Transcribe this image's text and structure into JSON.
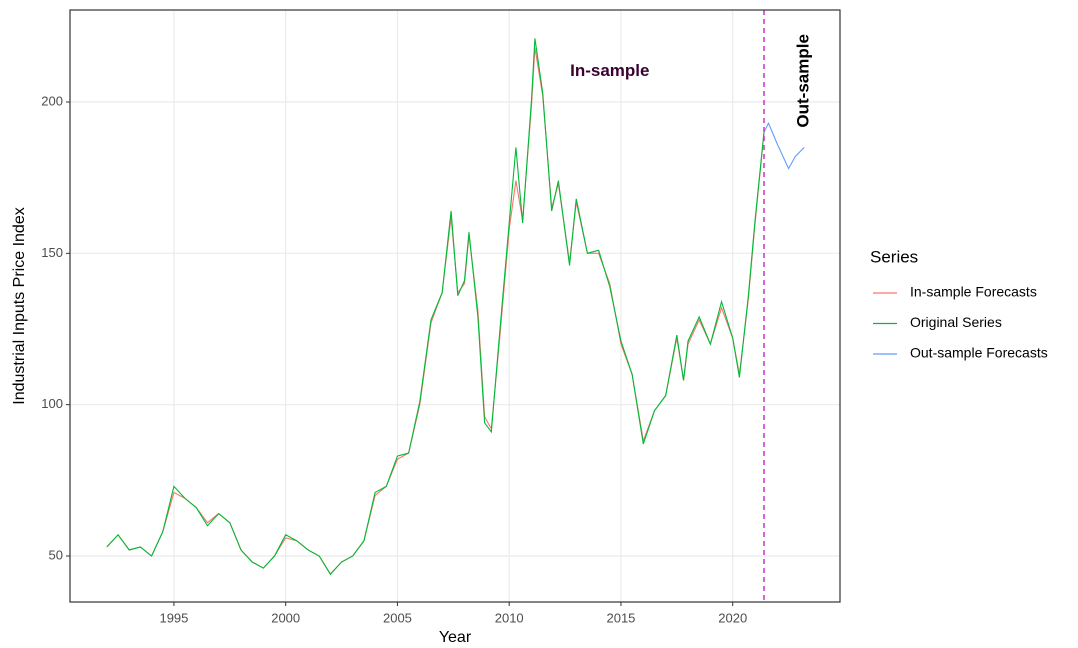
{
  "chart_data": {
    "type": "line",
    "xlabel": "Year",
    "ylabel": "Industrial Inputs Price Index",
    "xlim": [
      1990.35,
      2024.8
    ],
    "ylim": [
      34.8,
      230.4
    ],
    "xticks": [
      1995,
      2000,
      2005,
      2010,
      2015,
      2020
    ],
    "yticks": [
      50,
      100,
      150,
      200
    ],
    "grid": true,
    "legend_title": "Series",
    "legend_position": "right",
    "vline": {
      "x": 2021.4,
      "color": "#cc33cc"
    },
    "annotations": [
      {
        "text": "In-sample",
        "x": 2014.5,
        "y": 210
      },
      {
        "text": "Out-sample",
        "x": 2023.2,
        "y": 207
      }
    ],
    "series": [
      {
        "name": "In-sample Forecasts",
        "color": "#F8766D",
        "x": [
          1992.0,
          1992.5,
          1993.0,
          1993.5,
          1994.0,
          1994.5,
          1995.0,
          1995.5,
          1996.0,
          1996.5,
          1997.0,
          1997.5,
          1998.0,
          1998.5,
          1999.0,
          1999.5,
          2000.0,
          2000.5,
          2001.0,
          2001.5,
          2002.0,
          2002.5,
          2003.0,
          2003.5,
          2004.0,
          2004.5,
          2005.0,
          2005.5,
          2006.0,
          2006.5,
          2007.0,
          2007.4,
          2007.7,
          2008.0,
          2008.2,
          2008.6,
          2008.9,
          2009.2,
          2009.6,
          2010.0,
          2010.3,
          2010.6,
          2011.0,
          2011.15,
          2011.5,
          2011.9,
          2012.2,
          2012.7,
          2013.0,
          2013.5,
          2014.0,
          2014.5,
          2015.0,
          2015.5,
          2016.0,
          2016.5,
          2017.0,
          2017.5,
          2017.8,
          2018.0,
          2018.5,
          2019.0,
          2019.5,
          2020.0,
          2020.3,
          2020.7,
          2021.0,
          2021.4
        ],
        "values": [
          53,
          57,
          52,
          53,
          50,
          58,
          71,
          69,
          66,
          61,
          64,
          61,
          52,
          48,
          46,
          50,
          56,
          55,
          52,
          50,
          44,
          48,
          50,
          55,
          70,
          73,
          82,
          84,
          100,
          127,
          137,
          162,
          137,
          140,
          156,
          131,
          96,
          92,
          124,
          158,
          174,
          161,
          199,
          218,
          202,
          165,
          173,
          147,
          167,
          150,
          150,
          140,
          120,
          110,
          88,
          98,
          103,
          122,
          108,
          120,
          128,
          120,
          132,
          122,
          110,
          135,
          160,
          190
        ]
      },
      {
        "name": "Original Series",
        "color": "#00BA38",
        "x": [
          1992.0,
          1992.5,
          1993.0,
          1993.5,
          1994.0,
          1994.5,
          1995.0,
          1995.5,
          1996.0,
          1996.5,
          1997.0,
          1997.5,
          1998.0,
          1998.5,
          1999.0,
          1999.5,
          2000.0,
          2000.5,
          2001.0,
          2001.5,
          2002.0,
          2002.5,
          2003.0,
          2003.5,
          2004.0,
          2004.5,
          2005.0,
          2005.5,
          2006.0,
          2006.5,
          2007.0,
          2007.4,
          2007.7,
          2008.0,
          2008.2,
          2008.6,
          2008.9,
          2009.2,
          2009.6,
          2010.0,
          2010.3,
          2010.6,
          2011.0,
          2011.15,
          2011.5,
          2011.9,
          2012.2,
          2012.7,
          2013.0,
          2013.5,
          2014.0,
          2014.5,
          2015.0,
          2015.5,
          2016.0,
          2016.5,
          2017.0,
          2017.5,
          2017.8,
          2018.0,
          2018.5,
          2019.0,
          2019.5,
          2020.0,
          2020.3,
          2020.7,
          2021.0,
          2021.4
        ],
        "values": [
          53,
          57,
          52,
          53,
          50,
          58,
          73,
          69,
          66,
          60,
          64,
          61,
          52,
          48,
          46,
          50,
          57,
          55,
          52,
          50,
          44,
          48,
          50,
          55,
          71,
          73,
          83,
          84,
          101,
          128,
          137,
          164,
          136,
          141,
          157,
          129,
          94,
          91,
          126,
          160,
          185,
          160,
          201,
          221,
          203,
          164,
          174,
          146,
          168,
          150,
          151,
          139,
          121,
          110,
          87,
          98,
          103,
          123,
          108,
          121,
          129,
          120,
          134,
          122,
          109,
          136,
          161,
          190
        ]
      },
      {
        "name": "Out-sample Forecasts",
        "color": "#619CFF",
        "x": [
          2021.4,
          2021.6,
          2022.0,
          2022.5,
          2022.8,
          2023.2
        ],
        "values": [
          190,
          193,
          186,
          178,
          182,
          185
        ]
      }
    ]
  }
}
